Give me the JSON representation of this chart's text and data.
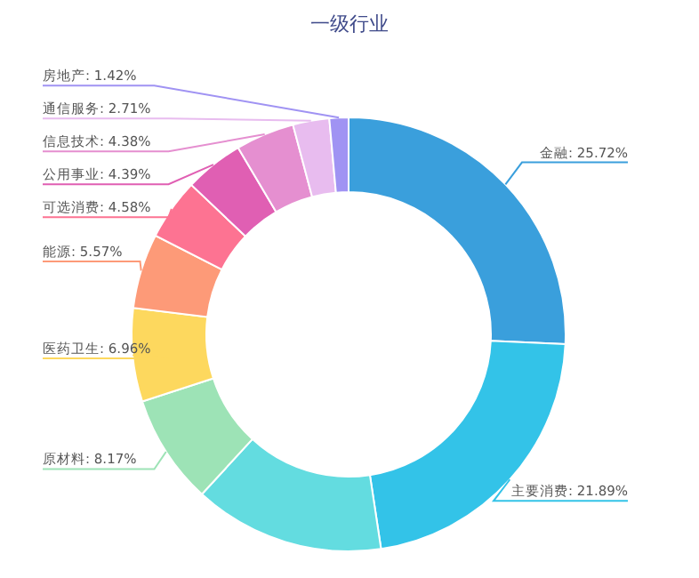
{
  "chart_data": {
    "type": "donut",
    "title": "一级行业",
    "categories": [
      "金融",
      "主要消费",
      null,
      "原材料",
      "医药卫生",
      "能源",
      "可选消费",
      "公用事业",
      "信息技术",
      "通信服务",
      "房地产"
    ],
    "values": [
      25.72,
      21.89,
      14.21,
      8.17,
      6.96,
      5.57,
      4.58,
      4.39,
      4.38,
      2.71,
      1.42
    ],
    "value_labels": [
      "25.72%",
      "21.89%",
      null,
      "8.17%",
      "6.96%",
      "5.57%",
      "4.58%",
      "4.39%",
      "4.38%",
      "2.71%",
      "1.42%"
    ],
    "colors": [
      "#3a9fdc",
      "#33c3e8",
      "#63dce0",
      "#9de3b6",
      "#fdd85e",
      "#fd9a78",
      "#fd7392",
      "#e05fb3",
      "#e58fd0",
      "#e8bcef",
      "#a093f3"
    ]
  }
}
